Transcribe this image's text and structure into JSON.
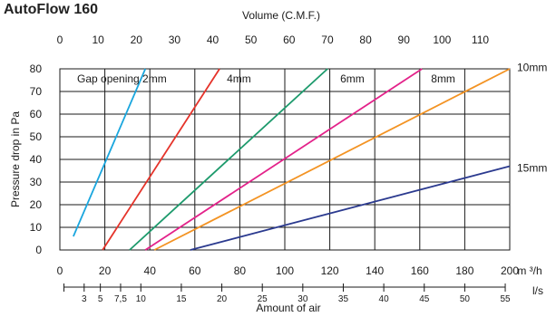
{
  "chart_data": {
    "type": "line",
    "title": "AutoFlow 160",
    "ylabel": "Pressure drop in Pa",
    "ylim": [
      0,
      80
    ],
    "y_ticks": [
      0,
      10,
      20,
      30,
      40,
      50,
      60,
      70,
      80
    ],
    "xlabel": "Amount of air",
    "x_primary": {
      "unit_label": "m ³/h",
      "xlim": [
        0,
        200
      ],
      "ticks": [
        0,
        20,
        40,
        60,
        80,
        100,
        120,
        140,
        160,
        180,
        200
      ]
    },
    "x_secondary": {
      "unit_label": "l/s",
      "ticks": [
        "3",
        "5",
        "7,5",
        "10",
        "15",
        "20",
        "25",
        "30",
        "35",
        "40",
        "45",
        "50",
        "55"
      ]
    },
    "x_top": {
      "label": "Volume (C.M.F.)",
      "ticks": [
        "0",
        "10",
        "20",
        "30",
        "40",
        "50",
        "60",
        "70",
        "80",
        "90",
        "100",
        "110"
      ]
    },
    "series": [
      {
        "name": "Gap opening 2mm",
        "color": "#1aa6de",
        "points": [
          [
            6,
            6
          ],
          [
            38,
            80
          ]
        ]
      },
      {
        "name": "4mm",
        "color": "#e5332a",
        "points": [
          [
            19,
            0
          ],
          [
            71,
            80
          ]
        ]
      },
      {
        "name": "6mm",
        "color": "#1d9a6c",
        "points": [
          [
            31,
            0
          ],
          [
            119,
            80
          ]
        ]
      },
      {
        "name": "8mm",
        "color": "#e3228a",
        "points": [
          [
            38,
            0
          ],
          [
            161,
            80
          ]
        ]
      },
      {
        "name": "10mm",
        "color": "#f39323",
        "points": [
          [
            42,
            0
          ],
          [
            200,
            80
          ]
        ]
      },
      {
        "name": "15mm",
        "color": "#2b3a8f",
        "points": [
          [
            58,
            0
          ],
          [
            200,
            37
          ]
        ]
      }
    ],
    "grid": true
  }
}
